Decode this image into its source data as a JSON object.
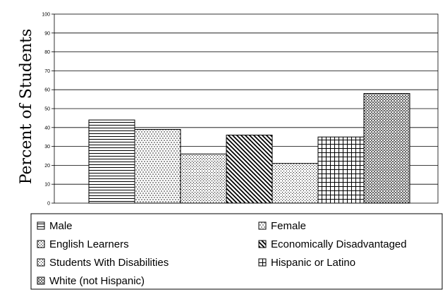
{
  "chart_data": {
    "type": "bar",
    "title": "",
    "xlabel": "",
    "ylabel": "Percent of Students",
    "ylim": [
      0,
      100
    ],
    "yticks": [
      0,
      10,
      20,
      30,
      40,
      50,
      60,
      70,
      80,
      90,
      100
    ],
    "grid": true,
    "legend_position": "bottom",
    "categories": [
      "Male",
      "Female",
      "English Learners",
      "Economically Disadvantaged",
      "Students With Disabilities",
      "Hispanic or Latino",
      "White (not Hispanic)"
    ],
    "values": [
      44,
      39,
      26,
      36,
      21,
      35,
      58
    ],
    "colors": {
      "bar_stroke": "#000000",
      "pattern_ink": "#000000",
      "background": "#ffffff",
      "grid": "#000000"
    }
  },
  "legend": [
    {
      "label": "Male",
      "pattern": "horizontal-lines"
    },
    {
      "label": "Female",
      "pattern": "vertical-dashes"
    },
    {
      "label": "English Learners",
      "pattern": "small-grid"
    },
    {
      "label": "Economically Disadvantaged",
      "pattern": "diagonal-lines"
    },
    {
      "label": "Students With Disabilities",
      "pattern": "fine-dots"
    },
    {
      "label": "Hispanic or Latino",
      "pattern": "large-grid"
    },
    {
      "label": "White (not Hispanic)",
      "pattern": "dense-dots"
    }
  ]
}
